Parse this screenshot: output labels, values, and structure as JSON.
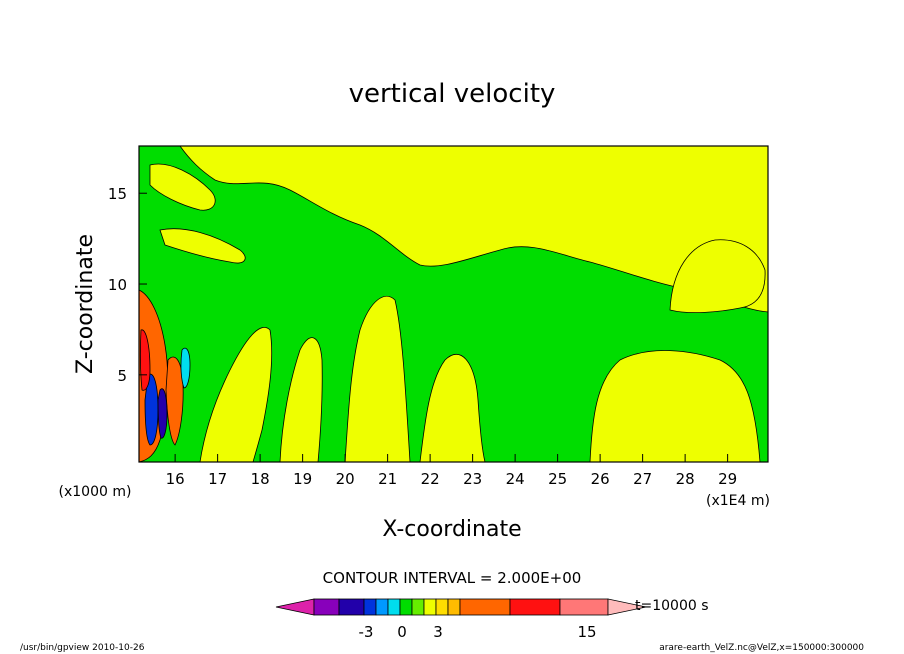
{
  "chart_data": {
    "type": "heatmap",
    "title": "vertical velocity",
    "xlabel": "X-coordinate",
    "ylabel": "Z-coordinate",
    "x_unit_note": "(x1E4 m)",
    "y_unit_note": "(x1000 m)",
    "xlim": [
      15.15,
      29.95
    ],
    "ylim": [
      0.2,
      17.6
    ],
    "x_ticks": [
      "16",
      "17",
      "18",
      "19",
      "20",
      "21",
      "22",
      "23",
      "24",
      "25",
      "26",
      "27",
      "28",
      "29"
    ],
    "y_ticks": [
      "5",
      "10",
      "15"
    ],
    "contour_interval": "CONTOUR INTERVAL = 2.000E+00",
    "time_label": "t=10000 s",
    "colorbar": {
      "levels": [
        "-3",
        "0",
        "3",
        "15"
      ],
      "colors": [
        "#dd22aa",
        "#8800bb",
        "#2200aa",
        "#0033dd",
        "#0099ff",
        "#00ddee",
        "#00dd00",
        "#66ee00",
        "#eeff00",
        "#ffdd00",
        "#ffbb00",
        "#ff6600",
        "#ff1111",
        "#ff7777",
        "#ffbbbb"
      ]
    },
    "field_regions": {
      "background": "#eeff00",
      "dominant": "#00dd00",
      "updraft_core": "#ff6600",
      "downdraft_core": "#0033dd"
    }
  },
  "footer": {
    "left": "/usr/bin/gpview   2010-10-26",
    "right": "arare-earth_VelZ.nc@VelZ,x=150000:300000"
  }
}
